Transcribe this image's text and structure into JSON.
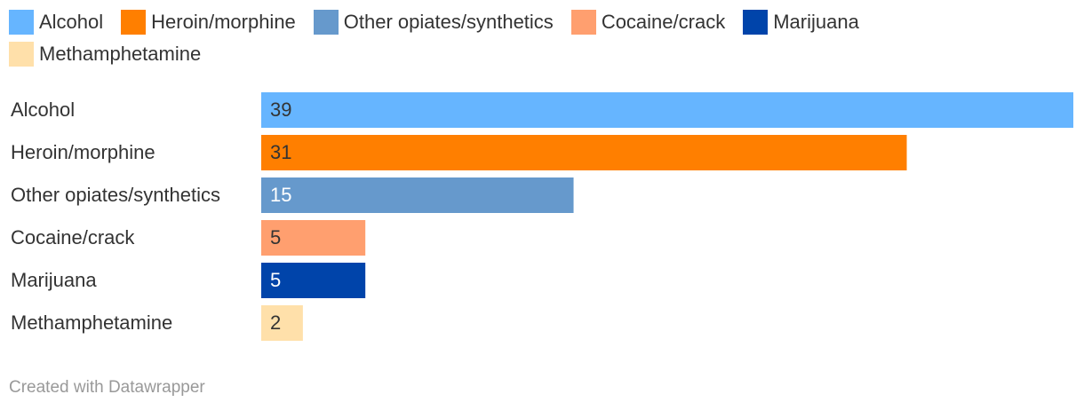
{
  "chart_data": {
    "type": "bar",
    "orientation": "horizontal",
    "categories": [
      "Alcohol",
      "Heroin/morphine",
      "Other opiates/synthetics",
      "Cocaine/crack",
      "Marijuana",
      "Methamphetamine"
    ],
    "values": [
      39,
      31,
      15,
      5,
      5,
      2
    ],
    "colors": [
      "#66b5ff",
      "#ff7f00",
      "#6699cc",
      "#ff9f6f",
      "#0044aa",
      "#ffe0aa"
    ],
    "xlim": [
      0,
      39
    ],
    "legend": "top",
    "credit": "Created with Datawrapper"
  }
}
